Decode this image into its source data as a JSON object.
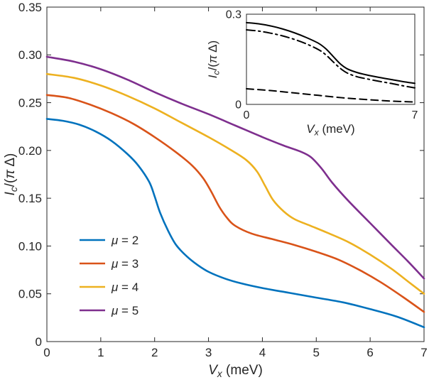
{
  "figure": {
    "background": "#ffffff",
    "axis_color": "#262626"
  },
  "chart_data": {
    "type": "line",
    "title": "",
    "xlabel": "V_x (meV)",
    "ylabel": "I_c/(π Δ)",
    "xlim": [
      0,
      7
    ],
    "ylim": [
      0,
      0.35
    ],
    "xticks": [
      0,
      1,
      2,
      3,
      4,
      5,
      6,
      7
    ],
    "xtick_labels": [
      "0",
      "1",
      "2",
      "3",
      "4",
      "5",
      "6",
      "7"
    ],
    "yticks": [
      0,
      0.05,
      0.1,
      0.15,
      0.2,
      0.25,
      0.3,
      0.35
    ],
    "ytick_labels": [
      "0",
      "0.05",
      "0.10",
      "0.15",
      "0.20",
      "0.25",
      "0.30",
      "0.35"
    ],
    "grid": false,
    "legend_position": "southwest",
    "series": [
      {
        "id": "mu-2",
        "name": "μ = 2",
        "color": "#0072BD",
        "style": "solid",
        "x": [
          0,
          0.3,
          0.6,
          0.9,
          1.2,
          1.5,
          1.7,
          1.9,
          2.0,
          2.1,
          2.25,
          2.4,
          2.6,
          2.8,
          3.0,
          3.3,
          3.6,
          4.0,
          4.5,
          5.0,
          5.5,
          6.0,
          6.5,
          7.0
        ],
        "y": [
          0.233,
          0.231,
          0.227,
          0.22,
          0.21,
          0.196,
          0.184,
          0.167,
          0.152,
          0.135,
          0.116,
          0.101,
          0.089,
          0.08,
          0.073,
          0.066,
          0.061,
          0.056,
          0.051,
          0.046,
          0.041,
          0.034,
          0.026,
          0.015
        ]
      },
      {
        "id": "mu-3",
        "name": "μ = 3",
        "color": "#D95319",
        "style": "solid",
        "x": [
          0,
          0.4,
          0.8,
          1.2,
          1.6,
          2.0,
          2.4,
          2.7,
          2.9,
          3.05,
          3.2,
          3.35,
          3.5,
          3.8,
          4.2,
          4.6,
          5.0,
          5.4,
          5.8,
          6.2,
          6.6,
          7.0
        ],
        "y": [
          0.258,
          0.255,
          0.248,
          0.239,
          0.228,
          0.214,
          0.198,
          0.184,
          0.171,
          0.157,
          0.141,
          0.129,
          0.121,
          0.113,
          0.107,
          0.101,
          0.094,
          0.086,
          0.075,
          0.062,
          0.047,
          0.031
        ]
      },
      {
        "id": "mu-4",
        "name": "μ = 4",
        "color": "#EDB120",
        "style": "solid",
        "x": [
          0,
          0.5,
          1.0,
          1.5,
          2.0,
          2.5,
          3.0,
          3.4,
          3.7,
          3.9,
          4.05,
          4.2,
          4.4,
          4.6,
          4.9,
          5.2,
          5.6,
          6.0,
          6.4,
          6.7,
          7.0
        ],
        "y": [
          0.28,
          0.276,
          0.268,
          0.257,
          0.244,
          0.229,
          0.214,
          0.201,
          0.19,
          0.178,
          0.163,
          0.148,
          0.136,
          0.128,
          0.121,
          0.114,
          0.104,
          0.091,
          0.076,
          0.063,
          0.05
        ]
      },
      {
        "id": "mu-5",
        "name": "μ = 5",
        "color": "#7E2F8E",
        "style": "solid",
        "x": [
          0,
          0.5,
          1.0,
          1.5,
          2.0,
          2.5,
          3.0,
          3.5,
          4.0,
          4.4,
          4.7,
          4.9,
          5.1,
          5.3,
          5.6,
          6.0,
          6.4,
          6.7,
          7.0
        ],
        "y": [
          0.298,
          0.293,
          0.285,
          0.274,
          0.261,
          0.249,
          0.238,
          0.226,
          0.214,
          0.205,
          0.199,
          0.193,
          0.181,
          0.166,
          0.147,
          0.124,
          0.101,
          0.084,
          0.066
        ]
      }
    ],
    "inset": {
      "type": "line",
      "xlabel": "V_x (meV)",
      "ylabel": "I_c/(π Δ)",
      "xlim": [
        0,
        7
      ],
      "ylim": [
        0,
        0.3
      ],
      "xticks": [
        0,
        7
      ],
      "xtick_labels": [
        "0",
        "7"
      ],
      "yticks": [
        0,
        0.3
      ],
      "ytick_labels": [
        "0",
        "0.3"
      ],
      "grid": false,
      "series": [
        {
          "id": "inset-solid",
          "name": "solid",
          "color": "#000000",
          "style": "solid",
          "x": [
            0,
            0.5,
            1,
            1.5,
            2,
            2.5,
            3,
            3.3,
            3.6,
            3.9,
            4.2,
            4.6,
            5,
            5.5,
            6,
            6.5,
            7
          ],
          "y": [
            0.272,
            0.268,
            0.261,
            0.251,
            0.238,
            0.222,
            0.203,
            0.185,
            0.16,
            0.135,
            0.118,
            0.106,
            0.098,
            0.09,
            0.083,
            0.076,
            0.07
          ]
        },
        {
          "id": "inset-dashdot",
          "name": "dash-dot",
          "color": "#000000",
          "style": "dashdot",
          "x": [
            0,
            0.5,
            1,
            1.5,
            2,
            2.5,
            3,
            3.3,
            3.6,
            3.9,
            4.2,
            4.6,
            5,
            5.5,
            6,
            6.5,
            7
          ],
          "y": [
            0.248,
            0.244,
            0.237,
            0.228,
            0.216,
            0.201,
            0.182,
            0.165,
            0.142,
            0.12,
            0.104,
            0.092,
            0.085,
            0.077,
            0.07,
            0.062,
            0.055
          ]
        },
        {
          "id": "inset-dashed",
          "name": "dashed",
          "color": "#000000",
          "style": "dashed",
          "x": [
            0,
            1,
            2,
            3,
            4,
            5,
            6,
            7
          ],
          "y": [
            0.052,
            0.046,
            0.038,
            0.03,
            0.022,
            0.016,
            0.011,
            0.008
          ]
        }
      ]
    }
  }
}
